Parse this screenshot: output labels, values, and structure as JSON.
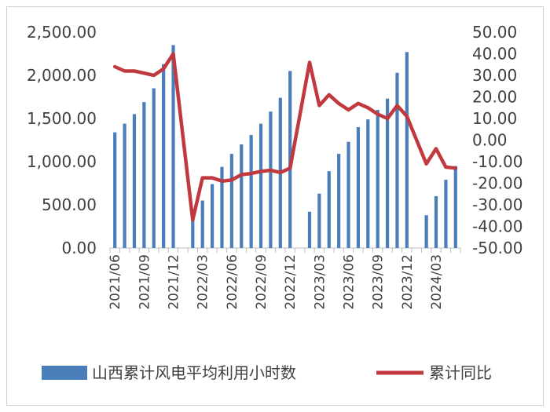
{
  "chart_data": {
    "type": "bar+line",
    "legend_position": "bottom",
    "gridlines": false,
    "left_axis": {
      "ticks": [
        "0.00",
        "500.00",
        "1,000.00",
        "1,500.00",
        "2,000.00",
        "2,500.00"
      ],
      "ylim": [
        0,
        2500
      ]
    },
    "right_axis": {
      "ticks": [
        "-50.00",
        "-40.00",
        "-30.00",
        "-20.00",
        "-10.00",
        "0.00",
        "10.00",
        "20.00",
        "30.00",
        "40.00",
        "50.00"
      ],
      "ylim": [
        -50,
        50
      ]
    },
    "x_tick_labels": [
      "2021/06",
      "2021/09",
      "2021/12",
      "2022/03",
      "2022/06",
      "2022/09",
      "2022/12",
      "2023/03",
      "2023/06",
      "2023/09",
      "2023/12",
      "2024/03"
    ],
    "x": [
      "2021/06",
      "2021/07",
      "2021/08",
      "2021/09",
      "2021/10",
      "2021/11",
      "2021/12",
      "2022/01",
      "2022/02",
      "2022/03",
      "2022/04",
      "2022/05",
      "2022/06",
      "2022/07",
      "2022/08",
      "2022/09",
      "2022/10",
      "2022/11",
      "2022/12",
      "2023/01",
      "2023/02",
      "2023/03",
      "2023/04",
      "2023/05",
      "2023/06",
      "2023/07",
      "2023/08",
      "2023/09",
      "2023/10",
      "2023/11",
      "2023/12",
      "2024/01",
      "2024/02",
      "2024/03",
      "2024/04",
      "2024/05"
    ],
    "series": [
      {
        "name": "山西累计风电平均利用小时数",
        "type": "bar",
        "axis": "left",
        "color": "#4a7ebb",
        "values": [
          1340,
          1440,
          1550,
          1690,
          1850,
          2130,
          2350,
          null,
          390,
          550,
          740,
          940,
          1090,
          1200,
          1310,
          1440,
          1580,
          1740,
          2050,
          null,
          420,
          630,
          890,
          1090,
          1230,
          1400,
          1490,
          1600,
          1730,
          2030,
          2270,
          null,
          380,
          600,
          790,
          950
        ]
      },
      {
        "name": "累计同比",
        "type": "line",
        "axis": "right",
        "color": "#c0393f",
        "values": [
          34,
          32,
          32,
          31,
          30,
          33,
          40,
          null,
          -37,
          -17.5,
          -17.5,
          -19,
          -18.5,
          -16,
          -15.5,
          -14.5,
          -14,
          -15,
          -13,
          null,
          36,
          16,
          21,
          17,
          14,
          17,
          15,
          12,
          10,
          16,
          11,
          null,
          -11,
          -4,
          -12.5,
          -13
        ]
      }
    ]
  }
}
